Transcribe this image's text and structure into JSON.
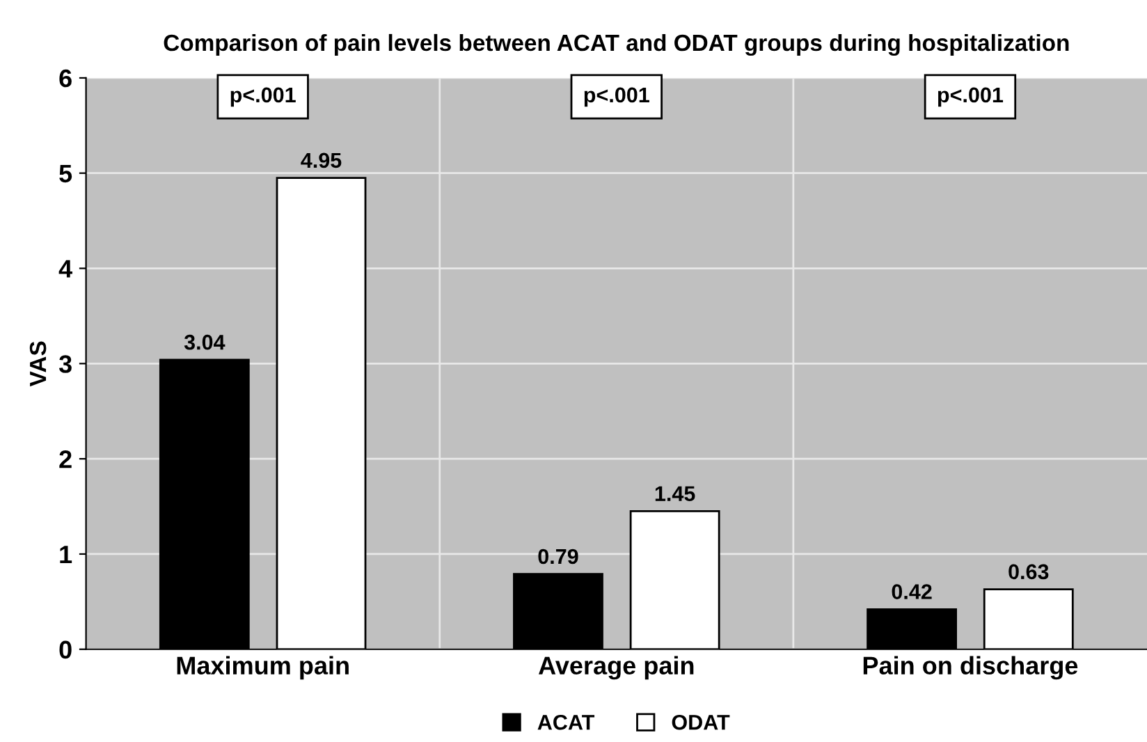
{
  "chart_data": {
    "type": "bar",
    "title": "Comparison of pain levels between ACAT and ODAT groups during hospitalization",
    "ylabel": "VAS",
    "categories": [
      "Maximum pain",
      "Average pain",
      "Pain on discharge"
    ],
    "series": [
      {
        "name": "ACAT",
        "color": "#000000",
        "values": [
          3.04,
          0.79,
          0.42
        ]
      },
      {
        "name": "ODAT",
        "color": "#ffffff",
        "values": [
          4.95,
          1.45,
          0.63
        ]
      }
    ],
    "ylim": [
      0,
      6
    ],
    "yticks": [
      0,
      1,
      2,
      3,
      4,
      5,
      6
    ],
    "grid": true,
    "legend": "bottom",
    "data_labels": true,
    "annotations": [
      "p<.001",
      "p<.001",
      "p<.001"
    ]
  }
}
